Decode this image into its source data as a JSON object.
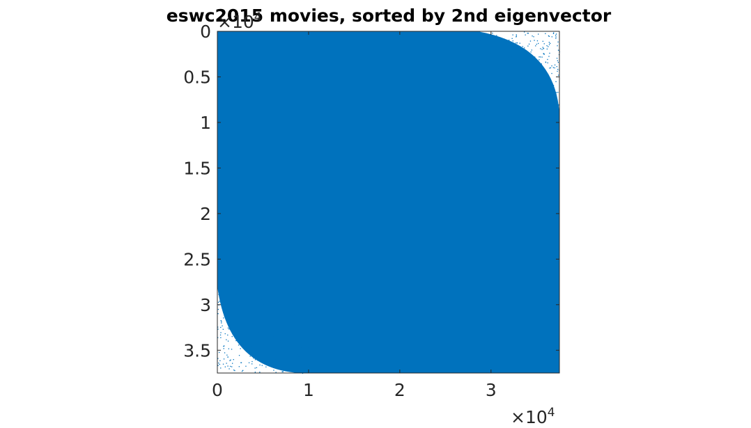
{
  "chart_data": {
    "type": "scatter",
    "title": "eswc2015 movies, sorted by 2nd eigenvector",
    "title_parts": {
      "before": "eswc2015",
      "after": "movies, sorted by 2nd eigenvector"
    },
    "xlabel": "",
    "ylabel": "",
    "xlim": [
      0,
      37500
    ],
    "ylim": [
      0,
      37500
    ],
    "y_reversed": true,
    "x_ticks": [
      0,
      10000,
      20000,
      30000
    ],
    "x_tick_labels": [
      "0",
      "1",
      "2",
      "3"
    ],
    "y_ticks": [
      0,
      5000,
      10000,
      15000,
      20000,
      25000,
      30000,
      35000
    ],
    "y_tick_labels": [
      "0",
      "0.5",
      "1",
      "1.5",
      "2",
      "2.5",
      "3",
      "3.5"
    ],
    "x_exponent": {
      "base": "×10",
      "power": "4"
    },
    "y_exponent": {
      "base": "×10",
      "power": "4"
    },
    "marker_color": "#0072BD",
    "marker": "dot",
    "density_note_values": {
      "dense_core": [
        [
          0,
          37500
        ],
        [
          0,
          37500
        ]
      ],
      "sparse_edges": [
        "right edge, top",
        "left edge, bottom"
      ]
    },
    "grid": false,
    "box": true
  }
}
